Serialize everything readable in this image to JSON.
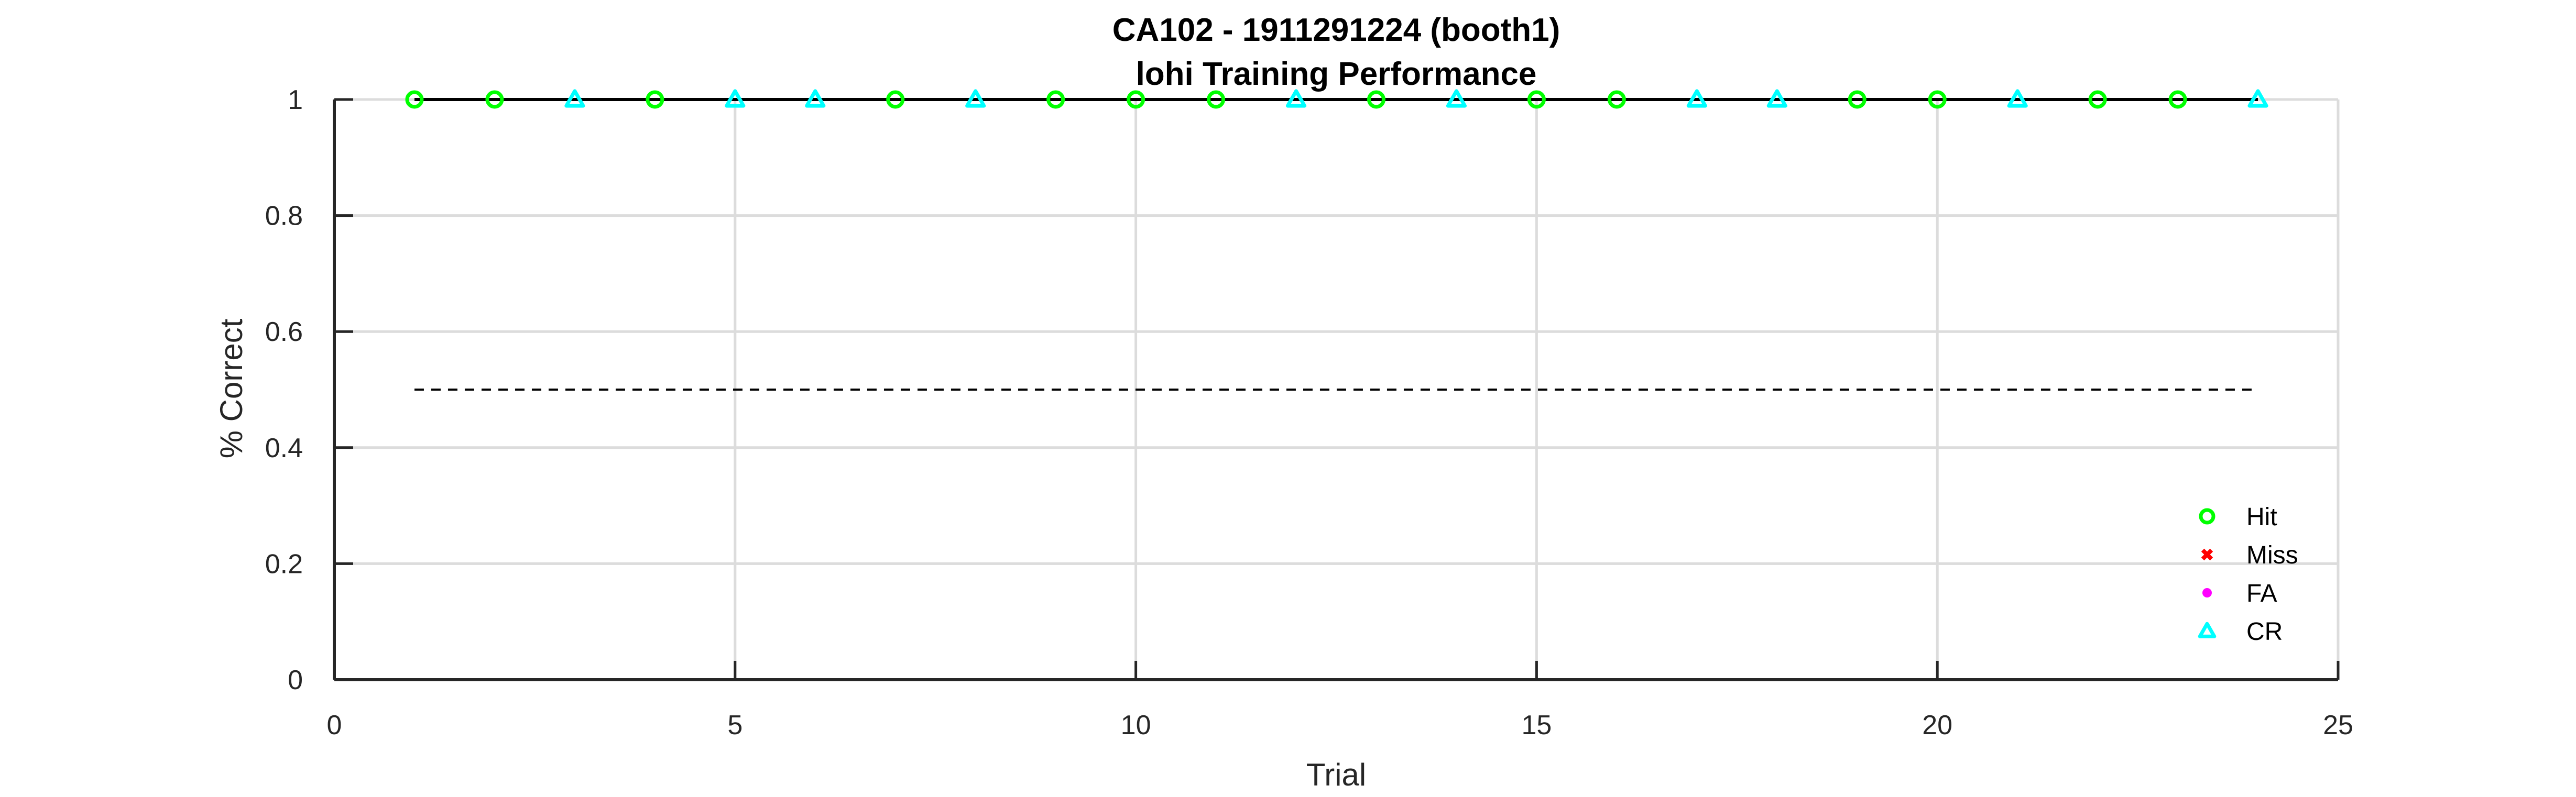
{
  "chart_data": {
    "type": "scatter",
    "title": "CA102 - 1911291224 (booth1)",
    "subtitle": "lohi Training Performance",
    "xlabel": "Trial",
    "ylabel": "% Correct",
    "xlim": [
      0,
      25
    ],
    "ylim": [
      0,
      1
    ],
    "xticks": [
      0,
      5,
      10,
      15,
      20,
      25
    ],
    "yticks": [
      0,
      0.2,
      0.4,
      0.6,
      0.8,
      1
    ],
    "xtick_labels": [
      "0",
      "5",
      "10",
      "15",
      "20",
      "25"
    ],
    "ytick_labels": [
      "0",
      "0.2",
      "0.4",
      "0.6",
      "0.8",
      "1"
    ],
    "grid": true,
    "legend_position": "bottom-right",
    "performance_line": {
      "x": [
        1,
        2,
        3,
        4,
        5,
        6,
        7,
        8,
        9,
        10,
        11,
        12,
        13,
        14,
        15,
        16,
        17,
        18,
        19,
        20,
        21,
        22,
        23,
        24
      ],
      "y": [
        1,
        1,
        1,
        1,
        1,
        1,
        1,
        1,
        1,
        1,
        1,
        1,
        1,
        1,
        1,
        1,
        1,
        1,
        1,
        1,
        1,
        1,
        1,
        1
      ],
      "color": "#000000"
    },
    "chance_line": {
      "x": [
        1,
        24
      ],
      "y": [
        0.5,
        0.5
      ],
      "style": "dashed"
    },
    "series": [
      {
        "name": "Hit",
        "marker": "circle",
        "color": "#00ff00",
        "x": [
          1,
          2,
          4,
          7,
          9,
          10,
          11,
          13,
          15,
          16,
          19,
          20,
          22,
          23
        ],
        "y": [
          1,
          1,
          1,
          1,
          1,
          1,
          1,
          1,
          1,
          1,
          1,
          1,
          1,
          1
        ]
      },
      {
        "name": "Miss",
        "marker": "x",
        "color": "#ff0000",
        "x": [],
        "y": []
      },
      {
        "name": "FA",
        "marker": "dot",
        "color": "#ff00ff",
        "x": [],
        "y": []
      },
      {
        "name": "CR",
        "marker": "triangle",
        "color": "#00ffff",
        "x": [
          3,
          5,
          6,
          8,
          12,
          14,
          17,
          18,
          21,
          24
        ],
        "y": [
          1,
          1,
          1,
          1,
          1,
          1,
          1,
          1,
          1,
          1
        ]
      }
    ]
  }
}
